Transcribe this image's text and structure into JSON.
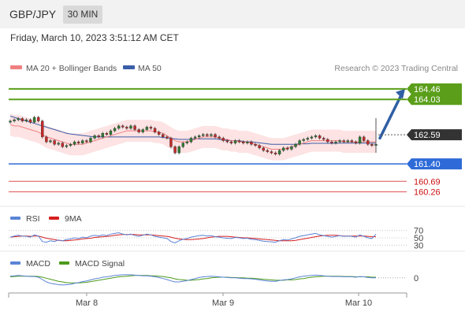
{
  "header": {
    "symbol": "GBP/JPY",
    "timeframe": "30 MIN",
    "datetime": "Friday, March 10, 2023 3:51:12 AM CET"
  },
  "legend": {
    "ma20": "MA 20 + Bollinger Bands",
    "ma50": "MA 50",
    "research": "Research © 2023 Trading Central"
  },
  "colors": {
    "up_candle": "#2e7d32",
    "down_candle": "#c62828",
    "ma20": "#f08080",
    "ma50": "#3b5ea8",
    "band_fill": "#fde3e3",
    "resistance": "#5a9e1a",
    "support": "#2f6bd8",
    "pivot_red": "#e05050",
    "arrow": "#2f5fa5"
  },
  "chart_data": {
    "type": "candlestick",
    "x_ticks": [
      "Mar 8",
      "Mar 9",
      "Mar 10"
    ],
    "price_ylim": [
      159.8,
      165.0
    ],
    "levels": [
      {
        "value": "164.46",
        "kind": "resistance"
      },
      {
        "value": "164.03",
        "kind": "resistance"
      },
      {
        "value": "162.59",
        "kind": "current"
      },
      {
        "value": "161.40",
        "kind": "support"
      },
      {
        "value": "160.69",
        "kind": "pivot"
      },
      {
        "value": "160.26",
        "kind": "pivot"
      }
    ],
    "close": [
      163.15,
      163.2,
      163.25,
      163.15,
      163.2,
      163.1,
      163.3,
      163.15,
      162.5,
      162.3,
      162.35,
      162.2,
      162.25,
      162.1,
      162.15,
      162.2,
      162.3,
      162.25,
      162.35,
      162.3,
      162.45,
      162.55,
      162.5,
      162.65,
      162.6,
      162.75,
      162.85,
      162.95,
      162.9,
      162.85,
      162.95,
      162.8,
      162.7,
      162.8,
      162.9,
      162.85,
      162.7,
      162.6,
      162.5,
      162.45,
      162.1,
      161.85,
      162.1,
      162.25,
      162.3,
      162.45,
      162.5,
      162.55,
      162.6,
      162.55,
      162.6,
      162.5,
      162.45,
      162.35,
      162.3,
      162.25,
      162.35,
      162.3,
      162.25,
      162.3,
      162.2,
      162.15,
      162.05,
      161.95,
      161.9,
      161.85,
      161.8,
      161.95,
      162.05,
      162.0,
      162.1,
      162.2,
      162.35,
      162.4,
      162.45,
      162.5,
      162.55,
      162.45,
      162.4,
      162.3,
      162.25,
      162.3,
      162.35,
      162.3,
      162.35,
      162.3,
      162.25,
      162.5,
      162.35,
      162.2,
      162.15,
      162.2
    ],
    "ma20": [
      163.0,
      162.95,
      162.95,
      162.9,
      162.85,
      162.8,
      162.75,
      162.7,
      162.6,
      162.5,
      162.45,
      162.4,
      162.35,
      162.3,
      162.25,
      162.2,
      162.2,
      162.2,
      162.2,
      162.25,
      162.3,
      162.35,
      162.4,
      162.45,
      162.5,
      162.55,
      162.6,
      162.65,
      162.7,
      162.75,
      162.75,
      162.75,
      162.75,
      162.75,
      162.75,
      162.75,
      162.7,
      162.7,
      162.65,
      162.55,
      162.45,
      162.35,
      162.3,
      162.3,
      162.3,
      162.35,
      162.4,
      162.45,
      162.5,
      162.5,
      162.5,
      162.5,
      162.45,
      162.4,
      162.4,
      162.35,
      162.35,
      162.3,
      162.3,
      162.3,
      162.25,
      162.2,
      162.15,
      162.1,
      162.05,
      162.0,
      162.0,
      162.0,
      162.0,
      162.05,
      162.1,
      162.15,
      162.2,
      162.25,
      162.3,
      162.35,
      162.35,
      162.35,
      162.35,
      162.35,
      162.35,
      162.35,
      162.35,
      162.3,
      162.3,
      162.3,
      162.3,
      162.3,
      162.3,
      162.3,
      162.3,
      162.3
    ],
    "ma50": [
      163.35,
      163.3,
      163.25,
      163.2,
      163.15,
      163.1,
      163.05,
      163.0,
      162.95,
      162.9,
      162.85,
      162.8,
      162.75,
      162.7,
      162.65,
      162.62,
      162.6,
      162.58,
      162.56,
      162.54,
      162.52,
      162.5,
      162.5,
      162.5,
      162.5,
      162.5,
      162.5,
      162.5,
      162.5,
      162.5,
      162.5,
      162.5,
      162.5,
      162.5,
      162.5,
      162.5,
      162.5,
      162.5,
      162.48,
      162.46,
      162.44,
      162.42,
      162.4,
      162.4,
      162.4,
      162.4,
      162.42,
      162.42,
      162.42,
      162.42,
      162.42,
      162.42,
      162.4,
      162.38,
      162.36,
      162.35,
      162.35,
      162.34,
      162.32,
      162.3,
      162.3,
      162.28,
      162.26,
      162.24,
      162.22,
      162.2,
      162.2,
      162.2,
      162.2,
      162.2,
      162.2,
      162.2,
      162.22,
      162.22,
      162.22,
      162.24,
      162.24,
      162.24,
      162.24,
      162.24,
      162.24,
      162.24,
      162.25,
      162.25,
      162.25,
      162.25,
      162.25,
      162.25,
      162.25,
      162.25,
      162.25,
      162.25
    ],
    "bollinger": {
      "upper_offset": 0.45,
      "lower_offset": 0.45
    },
    "forecast_arrow": {
      "from": 162.45,
      "to": 164.46
    },
    "rsi": {
      "labels": [
        "RSI",
        "9MA"
      ],
      "ticks": [
        "70",
        "50",
        "30"
      ],
      "ylim": [
        20,
        80
      ],
      "values": [
        52,
        55,
        57,
        55,
        54,
        52,
        58,
        55,
        40,
        38,
        42,
        40,
        44,
        42,
        45,
        47,
        50,
        48,
        52,
        50,
        55,
        57,
        55,
        58,
        56,
        60,
        62,
        64,
        60,
        58,
        60,
        56,
        54,
        57,
        60,
        58,
        54,
        52,
        50,
        48,
        40,
        36,
        42,
        46,
        48,
        52,
        54,
        56,
        57,
        55,
        56,
        53,
        52,
        50,
        49,
        48,
        51,
        50,
        48,
        49,
        46,
        45,
        43,
        41,
        40,
        39,
        38,
        42,
        45,
        44,
        47,
        50,
        54,
        56,
        58,
        60,
        62,
        58,
        56,
        54,
        52,
        54,
        56,
        54,
        55,
        54,
        52,
        58,
        54,
        50,
        48,
        60
      ],
      "ma_values": [
        52,
        53,
        54,
        55,
        55,
        54,
        55,
        55,
        52,
        49,
        47,
        45,
        43,
        42,
        42,
        43,
        44,
        45,
        47,
        48,
        49,
        51,
        52,
        53,
        54,
        55,
        57,
        58,
        59,
        59,
        59,
        59,
        58,
        58,
        58,
        58,
        57,
        56,
        55,
        54,
        52,
        49,
        47,
        46,
        45,
        45,
        46,
        47,
        48,
        50,
        52,
        53,
        54,
        54,
        54,
        53,
        52,
        51,
        50,
        50,
        49,
        48,
        47,
        46,
        45,
        44,
        43,
        42,
        42,
        42,
        42,
        43,
        45,
        47,
        49,
        51,
        53,
        55,
        56,
        57,
        57,
        57,
        56,
        55,
        55,
        55,
        55,
        55,
        55,
        54,
        53,
        53
      ]
    },
    "macd": {
      "labels": [
        "MACD",
        "MACD Signal"
      ],
      "ticks": [
        "0"
      ],
      "ylim": [
        -0.35,
        0.25
      ],
      "values": [
        0.05,
        0.06,
        0.07,
        0.06,
        0.05,
        0.04,
        0.04,
        0.02,
        -0.05,
        -0.12,
        -0.16,
        -0.18,
        -0.2,
        -0.21,
        -0.2,
        -0.19,
        -0.16,
        -0.14,
        -0.11,
        -0.09,
        -0.06,
        -0.03,
        -0.01,
        0.02,
        0.03,
        0.05,
        0.07,
        0.08,
        0.09,
        0.09,
        0.09,
        0.08,
        0.07,
        0.06,
        0.06,
        0.05,
        0.03,
        0.01,
        -0.02,
        -0.05,
        -0.09,
        -0.12,
        -0.12,
        -0.1,
        -0.08,
        -0.05,
        -0.02,
        0.01,
        0.03,
        0.04,
        0.05,
        0.04,
        0.03,
        0.02,
        0.01,
        0.0,
        0.0,
        -0.01,
        -0.02,
        -0.02,
        -0.03,
        -0.04,
        -0.06,
        -0.08,
        -0.09,
        -0.1,
        -0.1,
        -0.08,
        -0.06,
        -0.05,
        -0.03,
        0.0,
        0.03,
        0.05,
        0.06,
        0.07,
        0.08,
        0.07,
        0.06,
        0.05,
        0.04,
        0.04,
        0.04,
        0.03,
        0.03,
        0.03,
        0.02,
        0.04,
        0.03,
        0.01,
        0.0,
        0.0
      ],
      "signal": [
        0.03,
        0.04,
        0.05,
        0.05,
        0.05,
        0.05,
        0.05,
        0.04,
        0.02,
        -0.01,
        -0.04,
        -0.07,
        -0.1,
        -0.12,
        -0.14,
        -0.15,
        -0.15,
        -0.15,
        -0.14,
        -0.13,
        -0.11,
        -0.09,
        -0.07,
        -0.05,
        -0.03,
        -0.01,
        0.01,
        0.03,
        0.04,
        0.05,
        0.06,
        0.07,
        0.07,
        0.07,
        0.07,
        0.06,
        0.06,
        0.05,
        0.04,
        0.02,
        0.0,
        -0.03,
        -0.05,
        -0.06,
        -0.07,
        -0.07,
        -0.06,
        -0.05,
        -0.03,
        -0.02,
        0.0,
        0.01,
        0.02,
        0.02,
        0.02,
        0.01,
        0.01,
        0.0,
        0.0,
        -0.01,
        -0.01,
        -0.02,
        -0.03,
        -0.04,
        -0.05,
        -0.06,
        -0.07,
        -0.07,
        -0.07,
        -0.06,
        -0.06,
        -0.05,
        -0.03,
        -0.02,
        0.0,
        0.02,
        0.03,
        0.04,
        0.05,
        0.05,
        0.05,
        0.05,
        0.05,
        0.04,
        0.04,
        0.04,
        0.03,
        0.03,
        0.03,
        0.03,
        0.02,
        0.02
      ]
    }
  }
}
